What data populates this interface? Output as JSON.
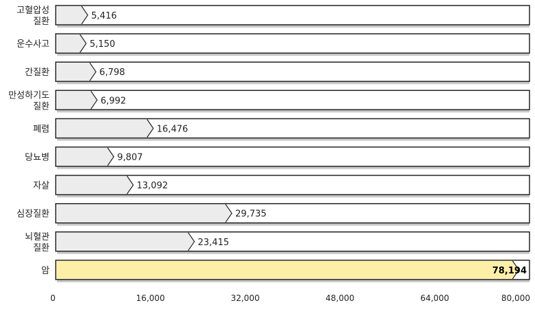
{
  "chart_data": {
    "type": "bar",
    "orientation": "horizontal",
    "title": "",
    "xlabel": "",
    "ylabel": "",
    "categories": [
      [
        "고혈압성",
        "질환"
      ],
      [
        "운수사고"
      ],
      [
        "간질환"
      ],
      [
        "만성하기도",
        "질환"
      ],
      [
        "폐렴"
      ],
      [
        "당뇨병"
      ],
      [
        "자살"
      ],
      [
        "심장질환"
      ],
      [
        "뇌혈관",
        "질환"
      ],
      [
        "암"
      ]
    ],
    "values": [
      5416,
      5150,
      6798,
      6992,
      16476,
      9807,
      13092,
      29735,
      23415,
      78194
    ],
    "value_labels": [
      "5,416",
      "5,150",
      "6,798",
      "6,992",
      "16,476",
      "9,807",
      "13,092",
      "29,735",
      "23,415",
      "78,194"
    ],
    "highlight_index": 9,
    "xlim": [
      0,
      80000
    ],
    "x_ticks": [
      0,
      16000,
      32000,
      48000,
      64000,
      80000
    ],
    "x_tick_labels": [
      "0",
      "16,000",
      "32,000",
      "48,000",
      "64,000",
      "80,000"
    ],
    "grid": false,
    "legend": "none",
    "colors": {
      "bar_fill": "#ececec",
      "highlight_fill": "#fdf0a6",
      "track_fill": "#ffffff",
      "border": "#222222",
      "shadow": "#c8c8c8"
    }
  }
}
